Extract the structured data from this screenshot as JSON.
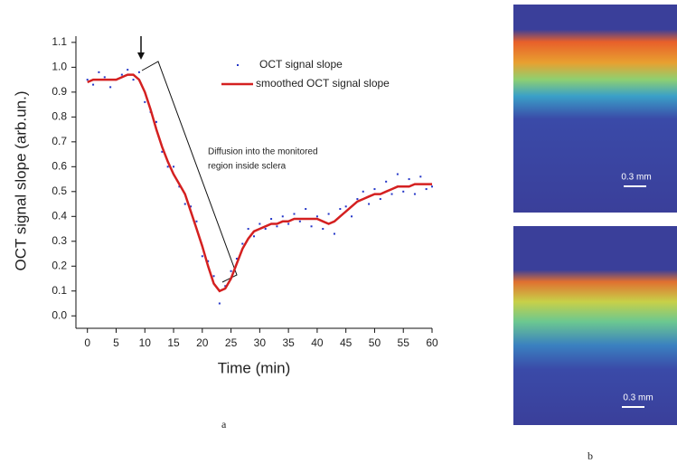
{
  "chart_data": {
    "type": "line",
    "xlabel": "Time (min)",
    "ylabel": "OCT signal slope (arb.un.)",
    "annotation": [
      "Diffusion into the monitored",
      "region inside sclera"
    ],
    "x": [
      0,
      1,
      2,
      3,
      4,
      5,
      6,
      7,
      8,
      9,
      10,
      11,
      12,
      13,
      14,
      15,
      16,
      17,
      18,
      19,
      20,
      21,
      22,
      23,
      24,
      25,
      26,
      27,
      28,
      29,
      30,
      31,
      32,
      33,
      34,
      35,
      36,
      37,
      38,
      39,
      40,
      41,
      42,
      43,
      44,
      45,
      46,
      47,
      48,
      49,
      50,
      51,
      52,
      53,
      54,
      55,
      56,
      57,
      58,
      59,
      60
    ],
    "series": [
      {
        "name": "OCT signal slope",
        "color": "#2436c8",
        "mode": "markers",
        "values": [
          0.95,
          0.93,
          0.98,
          0.96,
          0.92,
          0.95,
          0.97,
          0.99,
          0.95,
          0.98,
          0.86,
          0.82,
          0.78,
          0.66,
          0.6,
          0.6,
          0.52,
          0.45,
          0.44,
          0.38,
          0.24,
          0.22,
          0.16,
          0.05,
          0.12,
          0.18,
          0.23,
          0.29,
          0.35,
          0.32,
          0.37,
          0.35,
          0.39,
          0.36,
          0.4,
          0.37,
          0.41,
          0.38,
          0.43,
          0.36,
          0.4,
          0.35,
          0.41,
          0.33,
          0.43,
          0.44,
          0.4,
          0.47,
          0.5,
          0.45,
          0.51,
          0.47,
          0.54,
          0.49,
          0.57,
          0.5,
          0.55,
          0.49,
          0.56,
          0.51,
          0.52
        ]
      },
      {
        "name": "smoothed OCT signal slope",
        "color": "#d42020",
        "mode": "line",
        "values": [
          0.94,
          0.95,
          0.95,
          0.95,
          0.95,
          0.95,
          0.96,
          0.97,
          0.97,
          0.95,
          0.9,
          0.83,
          0.75,
          0.68,
          0.62,
          0.57,
          0.53,
          0.49,
          0.42,
          0.35,
          0.28,
          0.2,
          0.13,
          0.1,
          0.11,
          0.15,
          0.21,
          0.27,
          0.31,
          0.34,
          0.35,
          0.36,
          0.37,
          0.37,
          0.38,
          0.38,
          0.39,
          0.39,
          0.39,
          0.39,
          0.39,
          0.38,
          0.37,
          0.38,
          0.4,
          0.42,
          0.44,
          0.46,
          0.47,
          0.48,
          0.49,
          0.49,
          0.5,
          0.51,
          0.52,
          0.52,
          0.52,
          0.53,
          0.53,
          0.53,
          0.53
        ]
      }
    ],
    "xlim": [
      -2,
      60
    ],
    "ylim": [
      -0.05,
      1.125
    ],
    "xticks": [
      0,
      5,
      10,
      15,
      20,
      25,
      30,
      35,
      40,
      45,
      50,
      55,
      60
    ],
    "yticks": [
      {
        "value": 0,
        "label": "0.0"
      },
      0.1,
      0.2,
      0.3,
      0.4,
      0.5,
      0.6,
      0.7,
      0.8,
      0.9,
      {
        "value": 1,
        "label": "1.0"
      },
      1.1
    ],
    "grid": false
  },
  "panels": {
    "a": "a",
    "b": "b",
    "scale_bars": [
      "0.3 mm",
      "0.3 mm"
    ]
  }
}
